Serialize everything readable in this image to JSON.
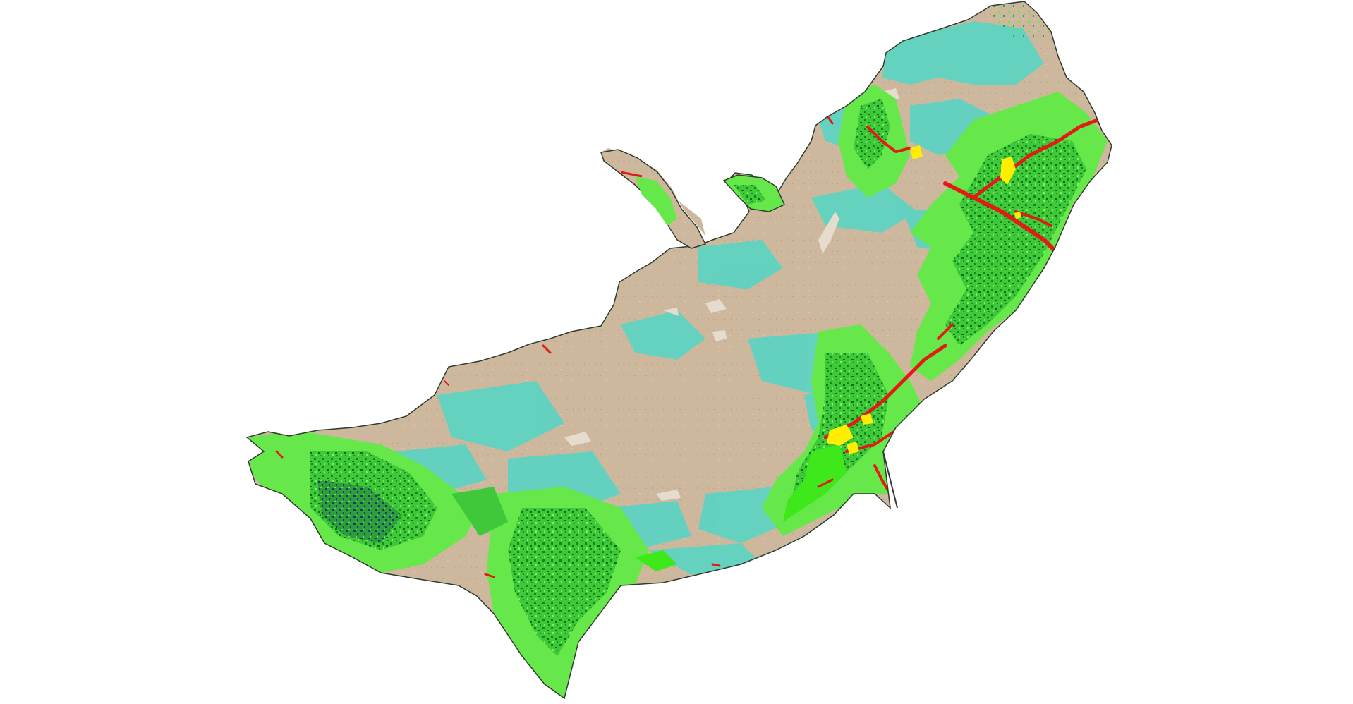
{
  "map": {
    "kind": "land-cover-classification",
    "background_color": "#ffffff",
    "boundary_color": "#2f3b2f",
    "classes": [
      {
        "name": "barren-desert",
        "color": "#cdb89d"
      },
      {
        "name": "bright-sand",
        "color": "#e6dccd"
      },
      {
        "name": "grassland-steppe",
        "color": "#5fd3c2"
      },
      {
        "name": "cropland",
        "color": "#66e84a"
      },
      {
        "name": "forest",
        "color": "#138a1a"
      },
      {
        "name": "dense-forest",
        "color": "#0c3f6e"
      },
      {
        "name": "water-bodies",
        "color": "#e21b14"
      },
      {
        "name": "urban-built-up",
        "color": "#ffee00"
      }
    ]
  }
}
